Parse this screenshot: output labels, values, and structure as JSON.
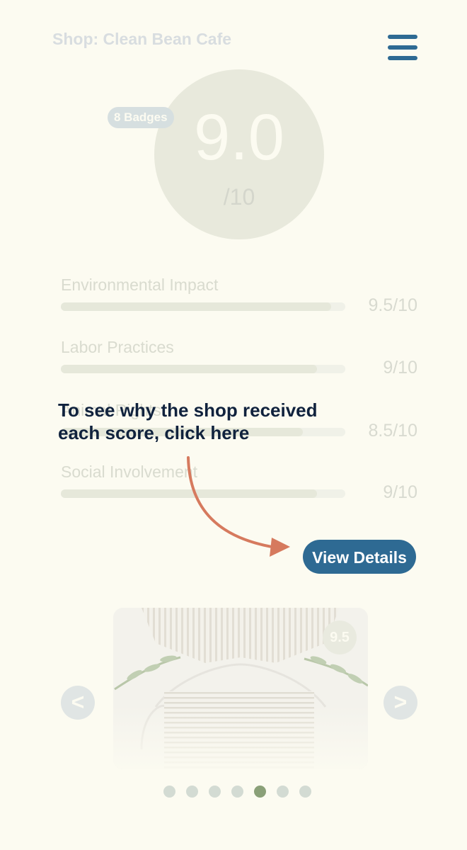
{
  "header": {
    "shop_title": "Shop: Clean Bean Cafe",
    "menu_icon": "hamburger-menu-icon"
  },
  "score": {
    "value": "9.0",
    "max": "/10",
    "badges_label": "8 Badges"
  },
  "metrics": [
    {
      "label": "Environmental Impact",
      "score": "9.5/10",
      "fraction": 0.95
    },
    {
      "label": "Labor Practices",
      "score": "9/10",
      "fraction": 0.9
    },
    {
      "label": "Animal Rights",
      "score": "8.5/10",
      "fraction": 0.85
    },
    {
      "label": "Social Involvement",
      "score": "9/10",
      "fraction": 0.9
    }
  ],
  "callout": {
    "text": "To see why the shop received each score, click here"
  },
  "view_details_label": "View Details",
  "carousel": {
    "image_score": "9.5",
    "prev_label": "<",
    "next_label": ">",
    "dot_count": 7,
    "active_index": 4
  },
  "colors": {
    "accent": "#2e6a93",
    "callout_text": "#10223d",
    "arrow": "#d67a5e",
    "active_dot": "#8aa078",
    "background": "#fcfbf1"
  }
}
